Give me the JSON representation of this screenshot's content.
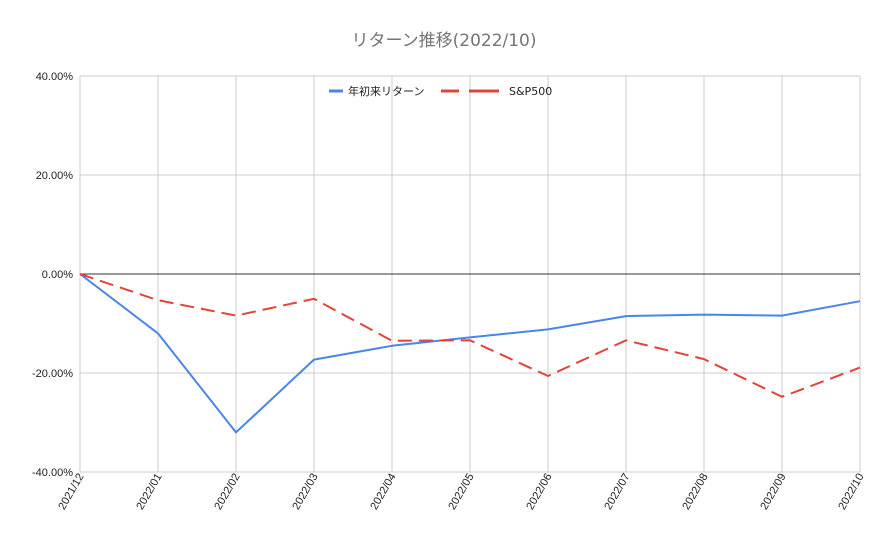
{
  "chart_data": {
    "type": "line",
    "title": "リターン推移(2022/10)",
    "x": [
      "2021/12",
      "2022/01",
      "2022/02",
      "2022/03",
      "2022/04",
      "2022/05",
      "2022/06",
      "2022/07",
      "2022/08",
      "2022/09",
      "2022/10"
    ],
    "series": [
      {
        "name": "年初来リターン",
        "color": "#4a86e8",
        "style": "solid",
        "values": [
          0,
          -12.0,
          -32.0,
          -17.3,
          -14.5,
          -12.8,
          -11.2,
          -8.5,
          -8.2,
          -8.4,
          -5.5
        ]
      },
      {
        "name": "S&P500",
        "color": "#e0443a",
        "style": "dashed",
        "values": [
          0,
          -5.3,
          -8.4,
          -5.0,
          -13.5,
          -13.4,
          -20.6,
          -13.4,
          -17.2,
          -24.8,
          -18.9
        ]
      }
    ],
    "y_ticks": [
      "40.00%",
      "20.00%",
      "0.00%",
      "-20.00%",
      "-40.00%"
    ],
    "ylim": [
      -40,
      40
    ],
    "xlabel": "",
    "ylabel": "",
    "grid": true,
    "legend_position": "top"
  }
}
